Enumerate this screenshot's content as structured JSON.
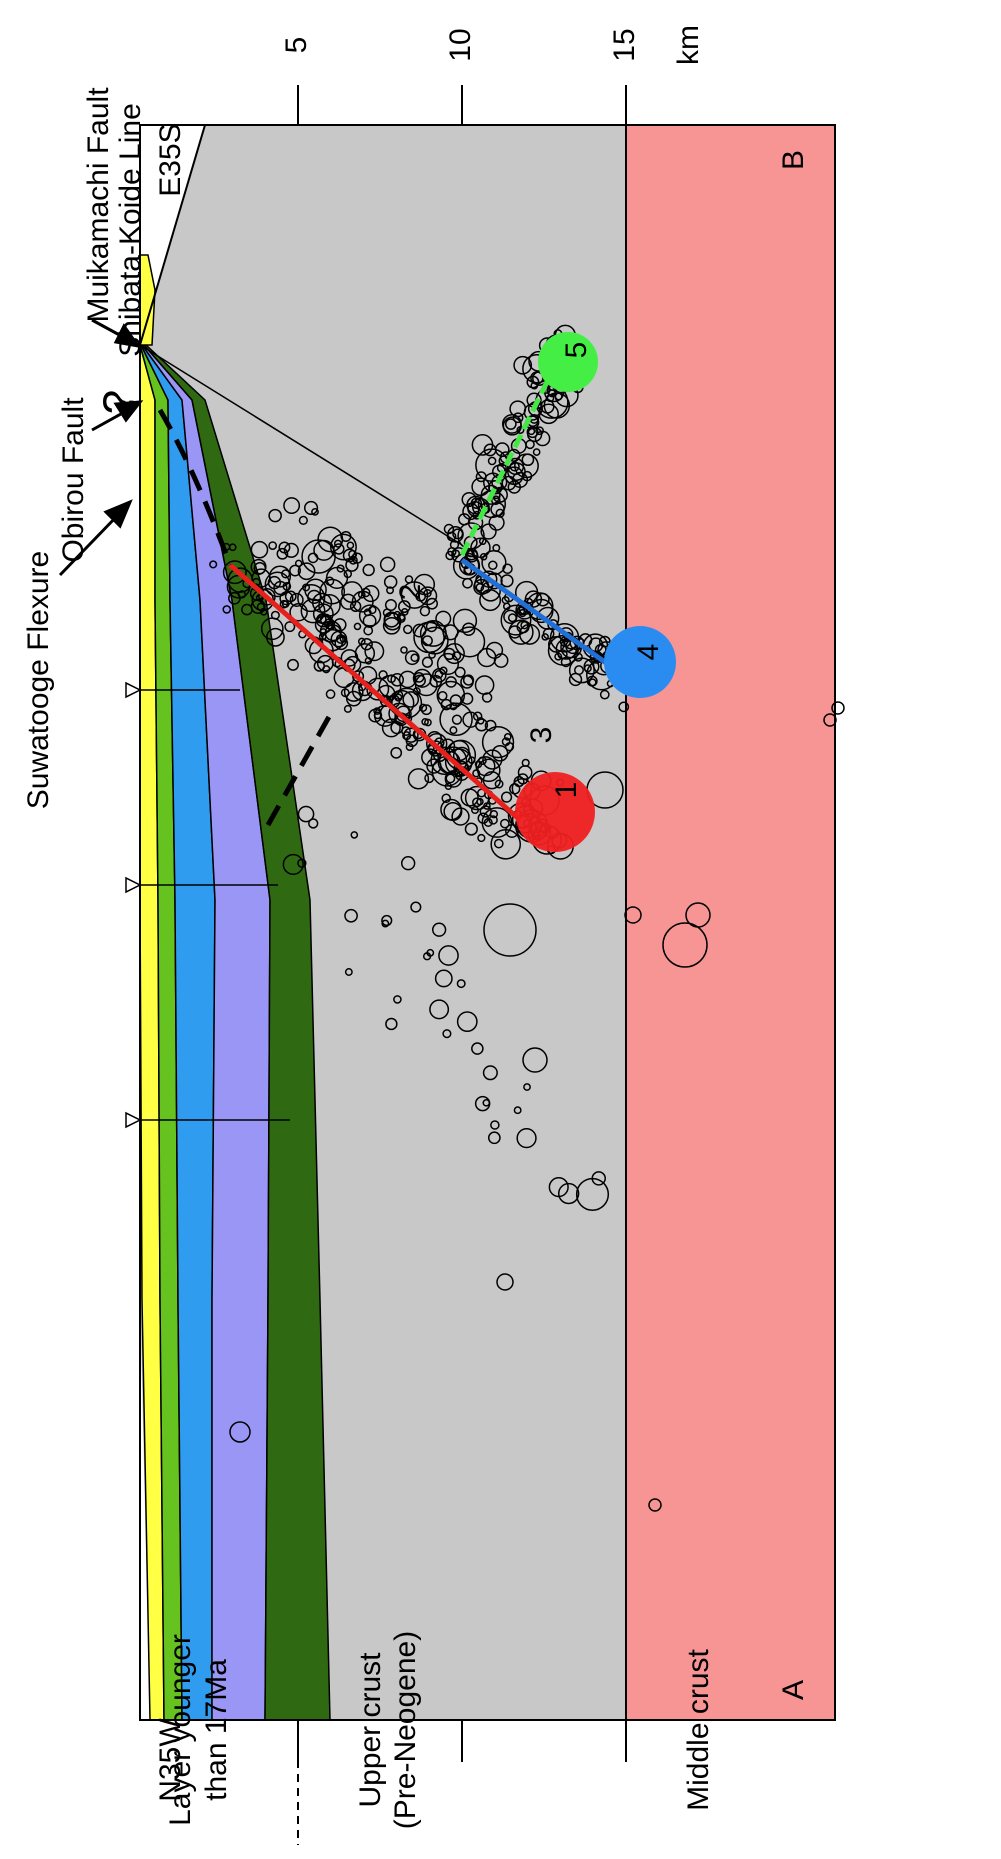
{
  "depth_axis": {
    "ticks": [
      5,
      10,
      15
    ],
    "unit": "km"
  },
  "ends": {
    "left": "N35W",
    "right": "E35S",
    "left_point": "A",
    "right_point": "B"
  },
  "faults": {
    "suwatooge": "Suwatooge Flexure",
    "obirou": "Obirou Fault",
    "muikamachi": "Muikamachi Fault",
    "shibata": "Shibata-Koide Line",
    "uncertain": "?"
  },
  "layers": {
    "young": [
      "Layer younger",
      "than 17Ma"
    ],
    "upper": [
      "Upper crust",
      "(Pre-Neogene)"
    ],
    "middle": "Middle crust"
  },
  "events": [
    "1",
    "2",
    "3",
    "4",
    "5"
  ]
}
